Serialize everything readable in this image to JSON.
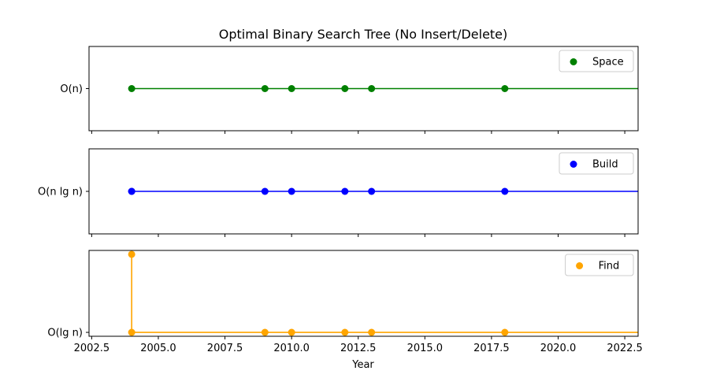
{
  "chart_data": {
    "type": "line",
    "title": "Optimal Binary Search Tree (No Insert/Delete)",
    "xlabel": "Year",
    "xlim": [
      2002.4,
      2023.0
    ],
    "x_ticks": [
      2002.5,
      2005.0,
      2007.5,
      2010.0,
      2012.5,
      2015.0,
      2017.5,
      2020.0,
      2022.5
    ],
    "x_tick_labels": [
      "2002.5",
      "2005.0",
      "2007.5",
      "2010.0",
      "2012.5",
      "2015.0",
      "2017.5",
      "2020.0",
      "2022.5"
    ],
    "grid": false,
    "panels": [
      {
        "name": "Space",
        "color": "#008000",
        "legend": "top-right",
        "ylim": [
          0.5,
          1.5
        ],
        "y_ticks": [
          1
        ],
        "y_tick_labels": [
          "O(n)"
        ],
        "x": [
          2004,
          2009,
          2010,
          2012,
          2013,
          2018
        ],
        "values": [
          1,
          1,
          1,
          1,
          1,
          1
        ],
        "step_extends_to": 2023.0
      },
      {
        "name": "Build",
        "color": "#0000ff",
        "legend": "top-right",
        "ylim": [
          0.5,
          1.5
        ],
        "y_ticks": [
          1
        ],
        "y_tick_labels": [
          "O(n lg n)"
        ],
        "x": [
          2004,
          2004,
          2009,
          2010,
          2012,
          2013,
          2018
        ],
        "values": [
          1,
          1,
          1,
          1,
          1,
          1,
          1
        ],
        "step_extends_to": 2023.0
      },
      {
        "name": "Find",
        "color": "#ffa500",
        "legend": "top-right",
        "ylim": [
          0.95,
          2.05
        ],
        "y_ticks": [
          1
        ],
        "y_tick_labels": [
          "O(lg n)"
        ],
        "x": [
          2004,
          2004,
          2009,
          2010,
          2012,
          2013,
          2018
        ],
        "values": [
          2,
          1,
          1,
          1,
          1,
          1,
          1
        ],
        "step_extends_to": 2023.0
      }
    ]
  }
}
